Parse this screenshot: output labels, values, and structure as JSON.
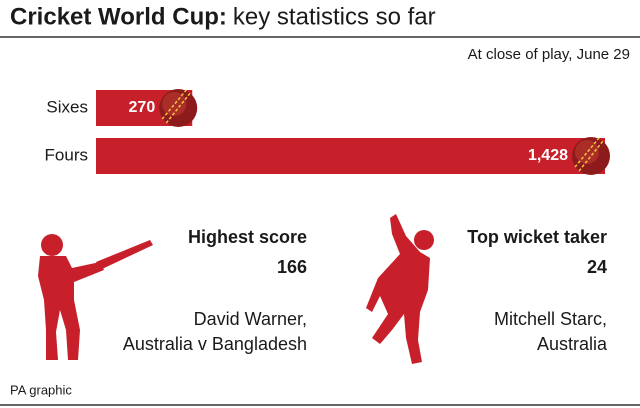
{
  "header": {
    "title_bold": "Cricket World Cup:",
    "title": "key statistics so far",
    "subtitle": "At close of play, June 29"
  },
  "chart_data": {
    "type": "bar",
    "orientation": "horizontal",
    "categories": [
      "Sixes",
      "Fours"
    ],
    "values": [
      270,
      1428
    ],
    "value_labels": [
      "270",
      "1,428"
    ],
    "color": "#c8202a"
  },
  "stats": [
    {
      "label": "Highest score",
      "value": 166,
      "name": "David Warner,",
      "detail": "Australia v Bangladesh"
    },
    {
      "label": "Top wicket taker",
      "value": 24,
      "name": "Mitchell Starc,",
      "detail": "Australia"
    }
  ],
  "footer": {
    "source": "PA graphic"
  }
}
